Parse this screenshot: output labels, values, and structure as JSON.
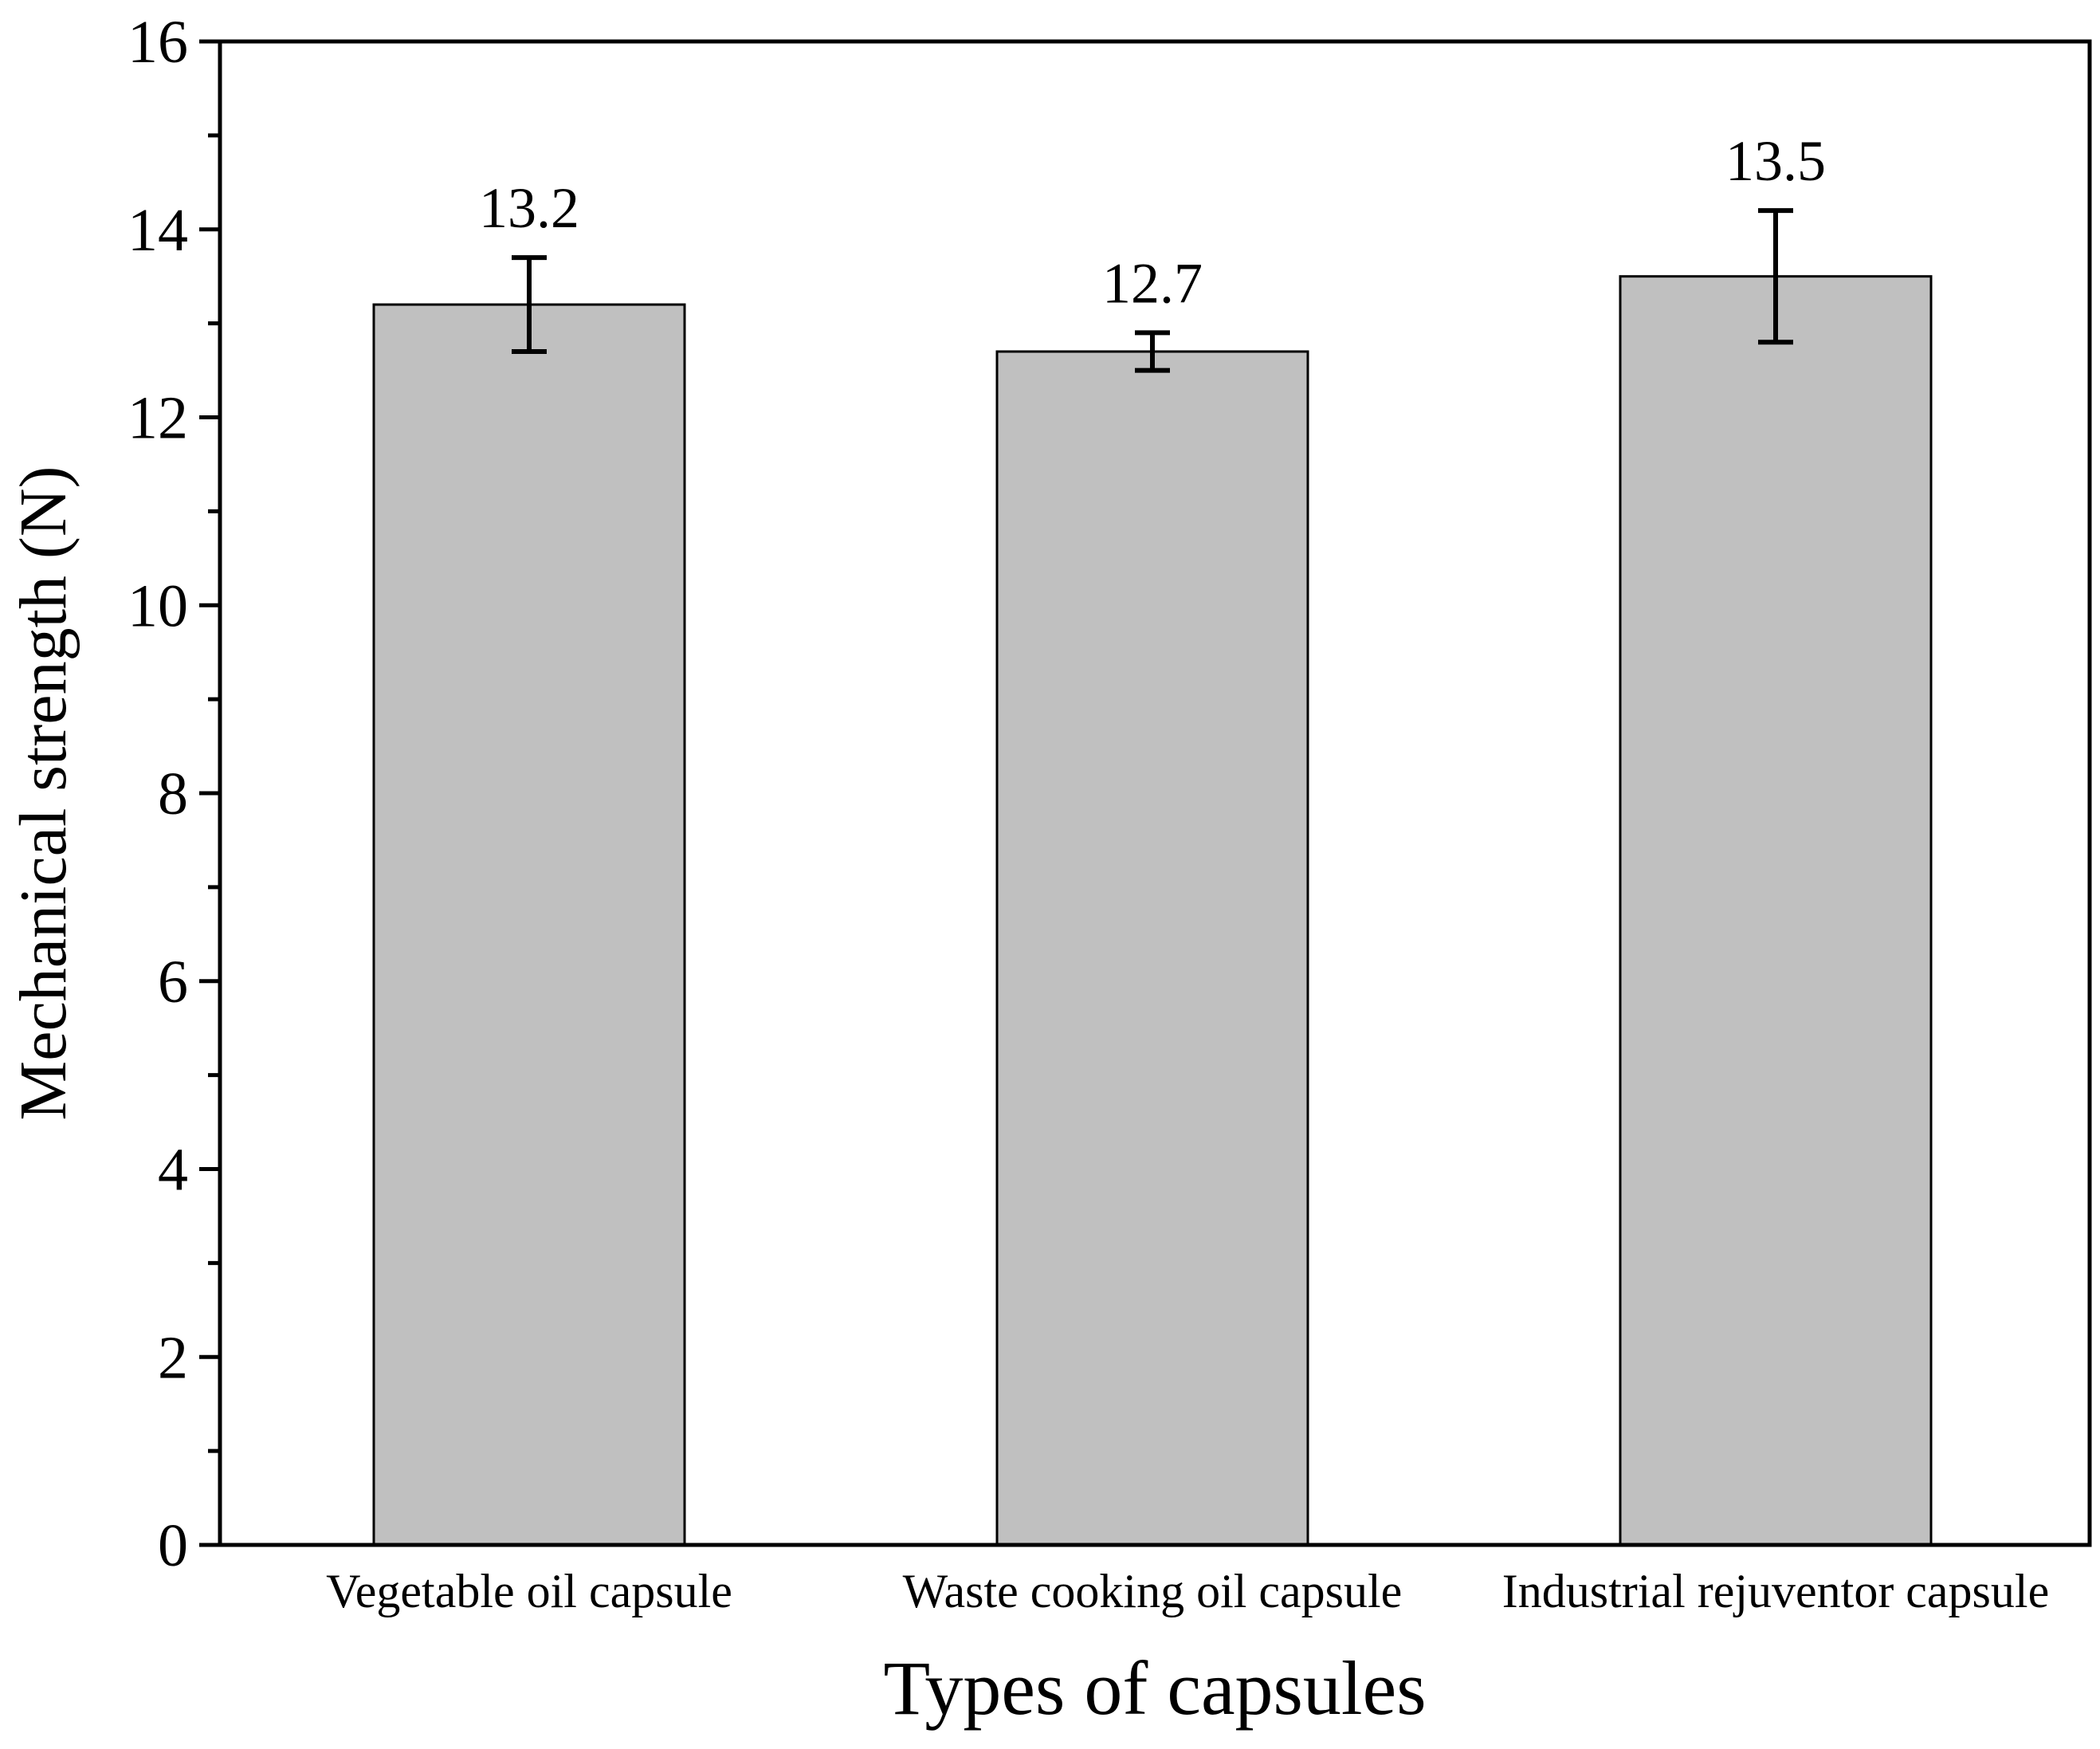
{
  "chart_data": {
    "type": "bar",
    "title": "",
    "xlabel": "Types of capsules",
    "ylabel": "Mechanical strength (N)",
    "ylim": [
      0,
      16
    ],
    "yticks": [
      0,
      2,
      4,
      6,
      8,
      10,
      12,
      14,
      16
    ],
    "ytick_labels": [
      "0",
      "2",
      "4",
      "6",
      "8",
      "10",
      "12",
      "14",
      "16"
    ],
    "minor_tick_step": 1,
    "grid": false,
    "categories": [
      "Vegetable oil capsule",
      "Waste cooking oil capsule",
      "Industrial rejuventor capsule"
    ],
    "values": [
      13.2,
      12.7,
      13.5
    ],
    "value_labels": [
      "13.2",
      "12.7",
      "13.5"
    ],
    "error_lower": [
      12.7,
      12.5,
      12.8
    ],
    "error_upper": [
      13.7,
      12.9,
      14.2
    ],
    "bar_color": "#c0c0c0",
    "bar_edge_color": "#000000",
    "axis_color": "#000000"
  }
}
